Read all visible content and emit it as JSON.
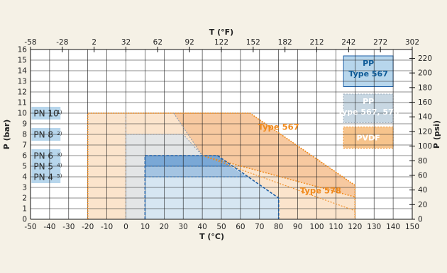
{
  "chart_data": {
    "type": "area",
    "title": "",
    "x_axis": {
      "label": "T (°C)",
      "range": [
        -50,
        150
      ],
      "ticks": [
        "-50",
        "-40",
        "-30",
        "-20",
        "-10",
        "0",
        "10",
        "20",
        "30",
        "40",
        "50",
        "60",
        "70",
        "80",
        "90",
        "100",
        "110",
        "120",
        "130",
        "140",
        "150"
      ]
    },
    "x2_axis": {
      "label": "T (°F)",
      "ticks": [
        "-58",
        "-28",
        "2",
        "32",
        "62",
        "92",
        "122",
        "152",
        "182",
        "212",
        "242",
        "272",
        "302"
      ]
    },
    "y_axis": {
      "label": "P (bar)",
      "range": [
        0,
        16
      ],
      "ticks": [
        "0",
        "1",
        "2",
        "3",
        "4",
        "5",
        "6",
        "7",
        "8",
        "9",
        "10",
        "11",
        "12",
        "13",
        "14",
        "15",
        "16"
      ]
    },
    "y2_axis": {
      "label": "P (psi)",
      "ticks": [
        "0",
        "20",
        "40",
        "60",
        "80",
        "100",
        "120",
        "140",
        "160",
        "180",
        "200",
        "220"
      ]
    },
    "grid": true,
    "pn_labels": [
      {
        "text": "PN 10",
        "sup": "1)",
        "bar": 10
      },
      {
        "text": "PN 8",
        "sup": "2)",
        "bar": 8
      },
      {
        "text": "PN 6",
        "sup": "3)",
        "bar": 6
      },
      {
        "text": "PN 5",
        "sup": "4)",
        "bar": 5
      },
      {
        "text": "PN 4",
        "sup": "5)",
        "bar": 4
      }
    ],
    "legend": {
      "position": "top-right",
      "items": [
        {
          "line1": "PP",
          "line2": "Type 567",
          "fill": "#b7d6ec",
          "text_color": "#0e5a96"
        },
        {
          "line1": "PP",
          "line2": "Type 567, 578",
          "fill": "#c8d7e2",
          "text_color": "#ffffff"
        },
        {
          "line1": "PVDF",
          "line2": "",
          "fill": "#f7c48c",
          "text_color": "#ffffff"
        }
      ]
    },
    "region_labels": [
      {
        "text": "Type 567",
        "x": 80,
        "y": 8.7,
        "color": "#f08a1c"
      },
      {
        "text": "Type 578",
        "x": 102,
        "y": 2.7,
        "color": "#f08a1c"
      }
    ],
    "series": [
      {
        "name": "PVDF",
        "color": "#f08a1c",
        "fill": "#fbe4cc",
        "points": [
          [
            -20,
            0
          ],
          [
            -20,
            10
          ],
          [
            65,
            10
          ],
          [
            120,
            3.2
          ],
          [
            120,
            0
          ]
        ]
      },
      {
        "name": "Type 567 (upper)",
        "color": "#f08a1c",
        "fill": "#f7c9a0",
        "points": [
          [
            25,
            10
          ],
          [
            65,
            10
          ],
          [
            120,
            3.2
          ],
          [
            120,
            2.1
          ]
        ]
      },
      {
        "name": "Type 578",
        "color": "#f08a1c",
        "points": [
          [
            25,
            10
          ],
          [
            40,
            6
          ],
          [
            120,
            0.8
          ]
        ]
      },
      {
        "name": "PN 8",
        "color": "#8a9bb0",
        "fill": "#e3e5e6",
        "points": [
          [
            0,
            0
          ],
          [
            0,
            8
          ],
          [
            30,
            8
          ],
          [
            40,
            6
          ]
        ]
      },
      {
        "name": "PN 10 (PP)",
        "color": "#8a9bb0",
        "points": [
          [
            0,
            8
          ],
          [
            0,
            10
          ],
          [
            25,
            10
          ],
          [
            40,
            6
          ]
        ]
      },
      {
        "name": "PP",
        "color": "#1e5fa6",
        "fill": "#d6e6f2",
        "points": [
          [
            10,
            0
          ],
          [
            10,
            6
          ],
          [
            48,
            6
          ],
          [
            80,
            2
          ],
          [
            80,
            0
          ]
        ]
      },
      {
        "name": "PN 6 band",
        "color": "#1e5fa6",
        "fill": "#7aa8d6",
        "points": [
          [
            10,
            5
          ],
          [
            10,
            6
          ],
          [
            48,
            6
          ],
          [
            55,
            5
          ]
        ]
      },
      {
        "name": "PN 5 band",
        "color": "#1e5fa6",
        "fill": "#a4c4e2",
        "points": [
          [
            10,
            4
          ],
          [
            10,
            5
          ],
          [
            55,
            5
          ],
          [
            63,
            4
          ]
        ]
      }
    ]
  }
}
